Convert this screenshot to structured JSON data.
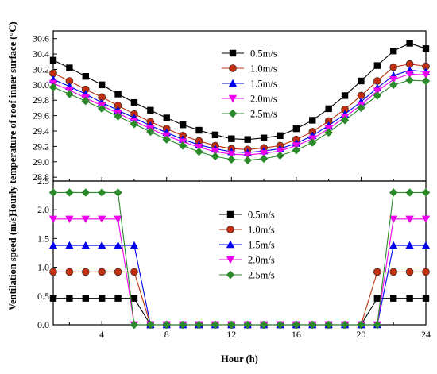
{
  "chart_data": [
    {
      "type": "line",
      "ylabel": "Hourly temperature of roof inner surface (°C)",
      "xlim": [
        1,
        24
      ],
      "ylim": [
        28.75,
        30.7
      ],
      "yticks": [
        28.8,
        29.0,
        29.2,
        29.4,
        29.6,
        29.8,
        30.0,
        30.2,
        30.4,
        30.6
      ],
      "legend_position": "top-right",
      "x": [
        1,
        2,
        3,
        4,
        5,
        6,
        7,
        8,
        9,
        10,
        11,
        12,
        13,
        14,
        15,
        16,
        17,
        18,
        19,
        20,
        21,
        22,
        23,
        24
      ],
      "series": [
        {
          "name": "0.5m/s",
          "color": "#000000",
          "marker": "square",
          "values": [
            30.32,
            30.22,
            30.11,
            30.0,
            29.88,
            29.77,
            29.67,
            29.57,
            29.48,
            29.41,
            29.35,
            29.3,
            29.29,
            29.31,
            29.34,
            29.43,
            29.54,
            29.69,
            29.86,
            30.05,
            30.25,
            30.44,
            30.54,
            30.47
          ]
        },
        {
          "name": "1.0m/s",
          "color": "#c03010",
          "marker": "circle",
          "values": [
            30.15,
            30.05,
            29.94,
            29.84,
            29.73,
            29.62,
            29.52,
            29.43,
            29.34,
            29.27,
            29.21,
            29.17,
            29.16,
            29.18,
            29.21,
            29.29,
            29.39,
            29.53,
            29.68,
            29.86,
            30.05,
            30.23,
            30.27,
            30.24
          ]
        },
        {
          "name": "1.5m/s",
          "color": "#0000ee",
          "marker": "triangle-up",
          "values": [
            30.07,
            29.98,
            29.88,
            29.77,
            29.67,
            29.57,
            29.47,
            29.38,
            29.29,
            29.22,
            29.17,
            29.13,
            29.12,
            29.14,
            29.17,
            29.24,
            29.34,
            29.47,
            29.62,
            29.78,
            29.96,
            30.12,
            30.19,
            30.17
          ]
        },
        {
          "name": "2.0m/s",
          "color": "#ee00ee",
          "marker": "triangle-down",
          "values": [
            30.02,
            29.93,
            29.83,
            29.73,
            29.63,
            29.53,
            29.43,
            29.34,
            29.26,
            29.19,
            29.13,
            29.1,
            29.09,
            29.11,
            29.14,
            29.21,
            29.3,
            29.43,
            29.58,
            29.74,
            29.92,
            30.07,
            30.14,
            30.13
          ]
        },
        {
          "name": "2.5m/s",
          "color": "#2a8a2a",
          "marker": "diamond",
          "values": [
            29.97,
            29.88,
            29.79,
            29.69,
            29.59,
            29.49,
            29.39,
            29.29,
            29.21,
            29.13,
            29.07,
            29.03,
            29.02,
            29.04,
            29.08,
            29.15,
            29.25,
            29.38,
            29.54,
            29.7,
            29.86,
            30.0,
            30.06,
            30.05
          ]
        }
      ]
    },
    {
      "type": "line",
      "xlabel": "Hour (h)",
      "ylabel": "Ventilation speed (m/s)",
      "xlim": [
        1,
        24
      ],
      "ylim": [
        0,
        2.5
      ],
      "xticks": [
        4,
        8,
        12,
        16,
        20,
        24
      ],
      "yticks": [
        0.0,
        0.5,
        1.0,
        1.5,
        2.0,
        2.5
      ],
      "legend_position": "center-right",
      "x": [
        1,
        2,
        3,
        4,
        5,
        6,
        7,
        8,
        9,
        10,
        11,
        12,
        13,
        14,
        15,
        16,
        17,
        18,
        19,
        20,
        21,
        22,
        23,
        24
      ],
      "series": [
        {
          "name": "0.5m/s",
          "color": "#000000",
          "marker": "square",
          "values": [
            0.46,
            0.46,
            0.46,
            0.46,
            0.46,
            0.46,
            0,
            0,
            0,
            0,
            0,
            0,
            0,
            0,
            0,
            0,
            0,
            0,
            0,
            0,
            0.46,
            0.46,
            0.46,
            0.46
          ]
        },
        {
          "name": "1.0m/s",
          "color": "#c03010",
          "marker": "circle",
          "values": [
            0.92,
            0.92,
            0.92,
            0.92,
            0.92,
            0.92,
            0,
            0,
            0,
            0,
            0,
            0,
            0,
            0,
            0,
            0,
            0,
            0,
            0,
            0,
            0.92,
            0.92,
            0.92,
            0.92
          ]
        },
        {
          "name": "1.5m/s",
          "color": "#0000ee",
          "marker": "triangle-up",
          "values": [
            1.38,
            1.38,
            1.38,
            1.38,
            1.38,
            1.38,
            0,
            0,
            0,
            0,
            0,
            0,
            0,
            0,
            0,
            0,
            0,
            0,
            0,
            0,
            0,
            1.38,
            1.38,
            1.38
          ]
        },
        {
          "name": "2.0m/s",
          "color": "#ee00ee",
          "marker": "triangle-down",
          "values": [
            1.84,
            1.84,
            1.84,
            1.84,
            1.84,
            0,
            0,
            0,
            0,
            0,
            0,
            0,
            0,
            0,
            0,
            0,
            0,
            0,
            0,
            0,
            0,
            1.84,
            1.84,
            1.84
          ]
        },
        {
          "name": "2.5m/s",
          "color": "#2a8a2a",
          "marker": "diamond",
          "values": [
            2.3,
            2.3,
            2.3,
            2.3,
            2.3,
            0,
            0,
            0,
            0,
            0,
            0,
            0,
            0,
            0,
            0,
            0,
            0,
            0,
            0,
            0,
            0,
            2.3,
            2.3,
            2.3
          ]
        }
      ]
    }
  ]
}
